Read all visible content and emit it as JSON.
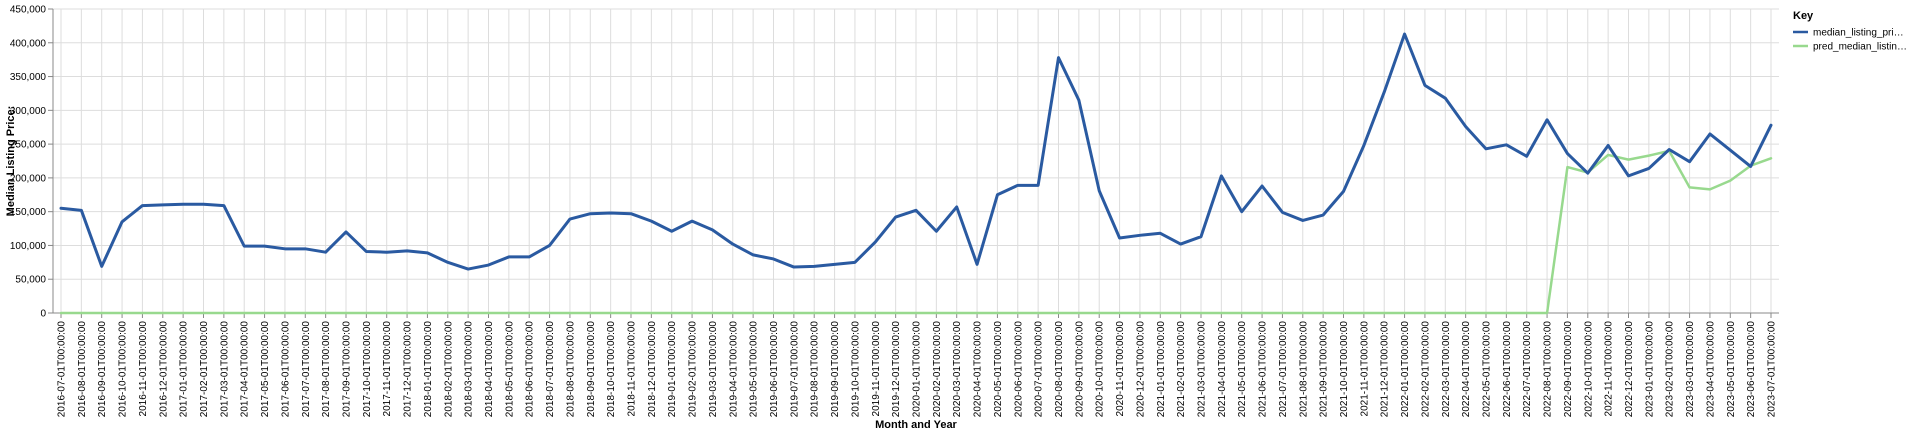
{
  "chart_data": {
    "type": "line",
    "xlabel": "Month and Year",
    "ylabel": "Median Listing Price:",
    "ylim": [
      0,
      450000
    ],
    "y_ticks": [
      "0",
      "50,000",
      "100,000",
      "150,000",
      "200,000",
      "250,000",
      "300,000",
      "350,000",
      "400,000",
      "450,000"
    ],
    "y_tick_values": [
      0,
      50000,
      100000,
      150000,
      200000,
      250000,
      300000,
      350000,
      400000,
      450000
    ],
    "grid": true,
    "legend_title": "Key",
    "legend_position": "top-right",
    "x": [
      "2016-07-01T00:00:00",
      "2016-08-01T00:00:00",
      "2016-09-01T00:00:00",
      "2016-10-01T00:00:00",
      "2016-11-01T00:00:00",
      "2016-12-01T00:00:00",
      "2017-01-01T00:00:00",
      "2017-02-01T00:00:00",
      "2017-03-01T00:00:00",
      "2017-04-01T00:00:00",
      "2017-05-01T00:00:00",
      "2017-06-01T00:00:00",
      "2017-07-01T00:00:00",
      "2017-08-01T00:00:00",
      "2017-09-01T00:00:00",
      "2017-10-01T00:00:00",
      "2017-11-01T00:00:00",
      "2017-12-01T00:00:00",
      "2018-01-01T00:00:00",
      "2018-02-01T00:00:00",
      "2018-03-01T00:00:00",
      "2018-04-01T00:00:00",
      "2018-05-01T00:00:00",
      "2018-06-01T00:00:00",
      "2018-07-01T00:00:00",
      "2018-08-01T00:00:00",
      "2018-09-01T00:00:00",
      "2018-10-01T00:00:00",
      "2018-11-01T00:00:00",
      "2018-12-01T00:00:00",
      "2019-01-01T00:00:00",
      "2019-02-01T00:00:00",
      "2019-03-01T00:00:00",
      "2019-04-01T00:00:00",
      "2019-05-01T00:00:00",
      "2019-06-01T00:00:00",
      "2019-07-01T00:00:00",
      "2019-08-01T00:00:00",
      "2019-09-01T00:00:00",
      "2019-10-01T00:00:00",
      "2019-11-01T00:00:00",
      "2019-12-01T00:00:00",
      "2020-01-01T00:00:00",
      "2020-02-01T00:00:00",
      "2020-03-01T00:00:00",
      "2020-04-01T00:00:00",
      "2020-05-01T00:00:00",
      "2020-06-01T00:00:00",
      "2020-07-01T00:00:00",
      "2020-08-01T00:00:00",
      "2020-09-01T00:00:00",
      "2020-10-01T00:00:00",
      "2020-11-01T00:00:00",
      "2020-12-01T00:00:00",
      "2021-01-01T00:00:00",
      "2021-02-01T00:00:00",
      "2021-03-01T00:00:00",
      "2021-04-01T00:00:00",
      "2021-05-01T00:00:00",
      "2021-06-01T00:00:00",
      "2021-07-01T00:00:00",
      "2021-08-01T00:00:00",
      "2021-09-01T00:00:00",
      "2021-10-01T00:00:00",
      "2021-11-01T00:00:00",
      "2021-12-01T00:00:00",
      "2022-01-01T00:00:00",
      "2022-02-01T00:00:00",
      "2022-03-01T00:00:00",
      "2022-04-01T00:00:00",
      "2022-05-01T00:00:00",
      "2022-06-01T00:00:00",
      "2022-07-01T00:00:00",
      "2022-08-01T00:00:00",
      "2022-09-01T00:00:00",
      "2022-10-01T00:00:00",
      "2022-11-01T00:00:00",
      "2022-12-01T00:00:00",
      "2023-01-01T00:00:00",
      "2023-02-01T00:00:00",
      "2023-03-01T00:00:00",
      "2023-04-01T00:00:00",
      "2023-05-01T00:00:00",
      "2023-06-01T00:00:00",
      "2023-07-01T00:00:00"
    ],
    "series": [
      {
        "name": "median_listing_pri…",
        "color": "#2a5aa1",
        "values": [
          155000,
          152000,
          69000,
          135000,
          159000,
          160000,
          161000,
          161000,
          159000,
          99000,
          99000,
          95000,
          95000,
          90000,
          120000,
          91000,
          90000,
          92000,
          89000,
          75000,
          65000,
          71000,
          83000,
          83000,
          100000,
          139000,
          147000,
          148000,
          147000,
          136000,
          121000,
          136000,
          123000,
          102000,
          86000,
          80000,
          68000,
          69000,
          72000,
          75000,
          105000,
          142000,
          152000,
          121000,
          157000,
          72000,
          175000,
          189000,
          189000,
          378000,
          315000,
          181000,
          111000,
          115000,
          118000,
          102000,
          113000,
          203000,
          150000,
          188000,
          149000,
          137000,
          145000,
          180000,
          248000,
          327000,
          413000,
          337000,
          318000,
          276000,
          243000,
          249000,
          232000,
          286000,
          236000,
          207000,
          248000,
          203000,
          214000,
          242000,
          224000,
          265000,
          241000,
          217000,
          278000
        ]
      },
      {
        "name": "pred_median_listin…",
        "color": "#98d98e",
        "values": [
          0,
          0,
          0,
          0,
          0,
          0,
          0,
          0,
          0,
          0,
          0,
          0,
          0,
          0,
          0,
          0,
          0,
          0,
          0,
          0,
          0,
          0,
          0,
          0,
          0,
          0,
          0,
          0,
          0,
          0,
          0,
          0,
          0,
          0,
          0,
          0,
          0,
          0,
          0,
          0,
          0,
          0,
          0,
          0,
          0,
          0,
          0,
          0,
          0,
          0,
          0,
          0,
          0,
          0,
          0,
          0,
          0,
          0,
          0,
          0,
          0,
          0,
          0,
          0,
          0,
          0,
          0,
          0,
          0,
          0,
          0,
          0,
          0,
          0,
          216000,
          208000,
          234000,
          227000,
          233000,
          240000,
          186000,
          183000,
          196000,
          218000,
          229000
        ]
      }
    ]
  }
}
